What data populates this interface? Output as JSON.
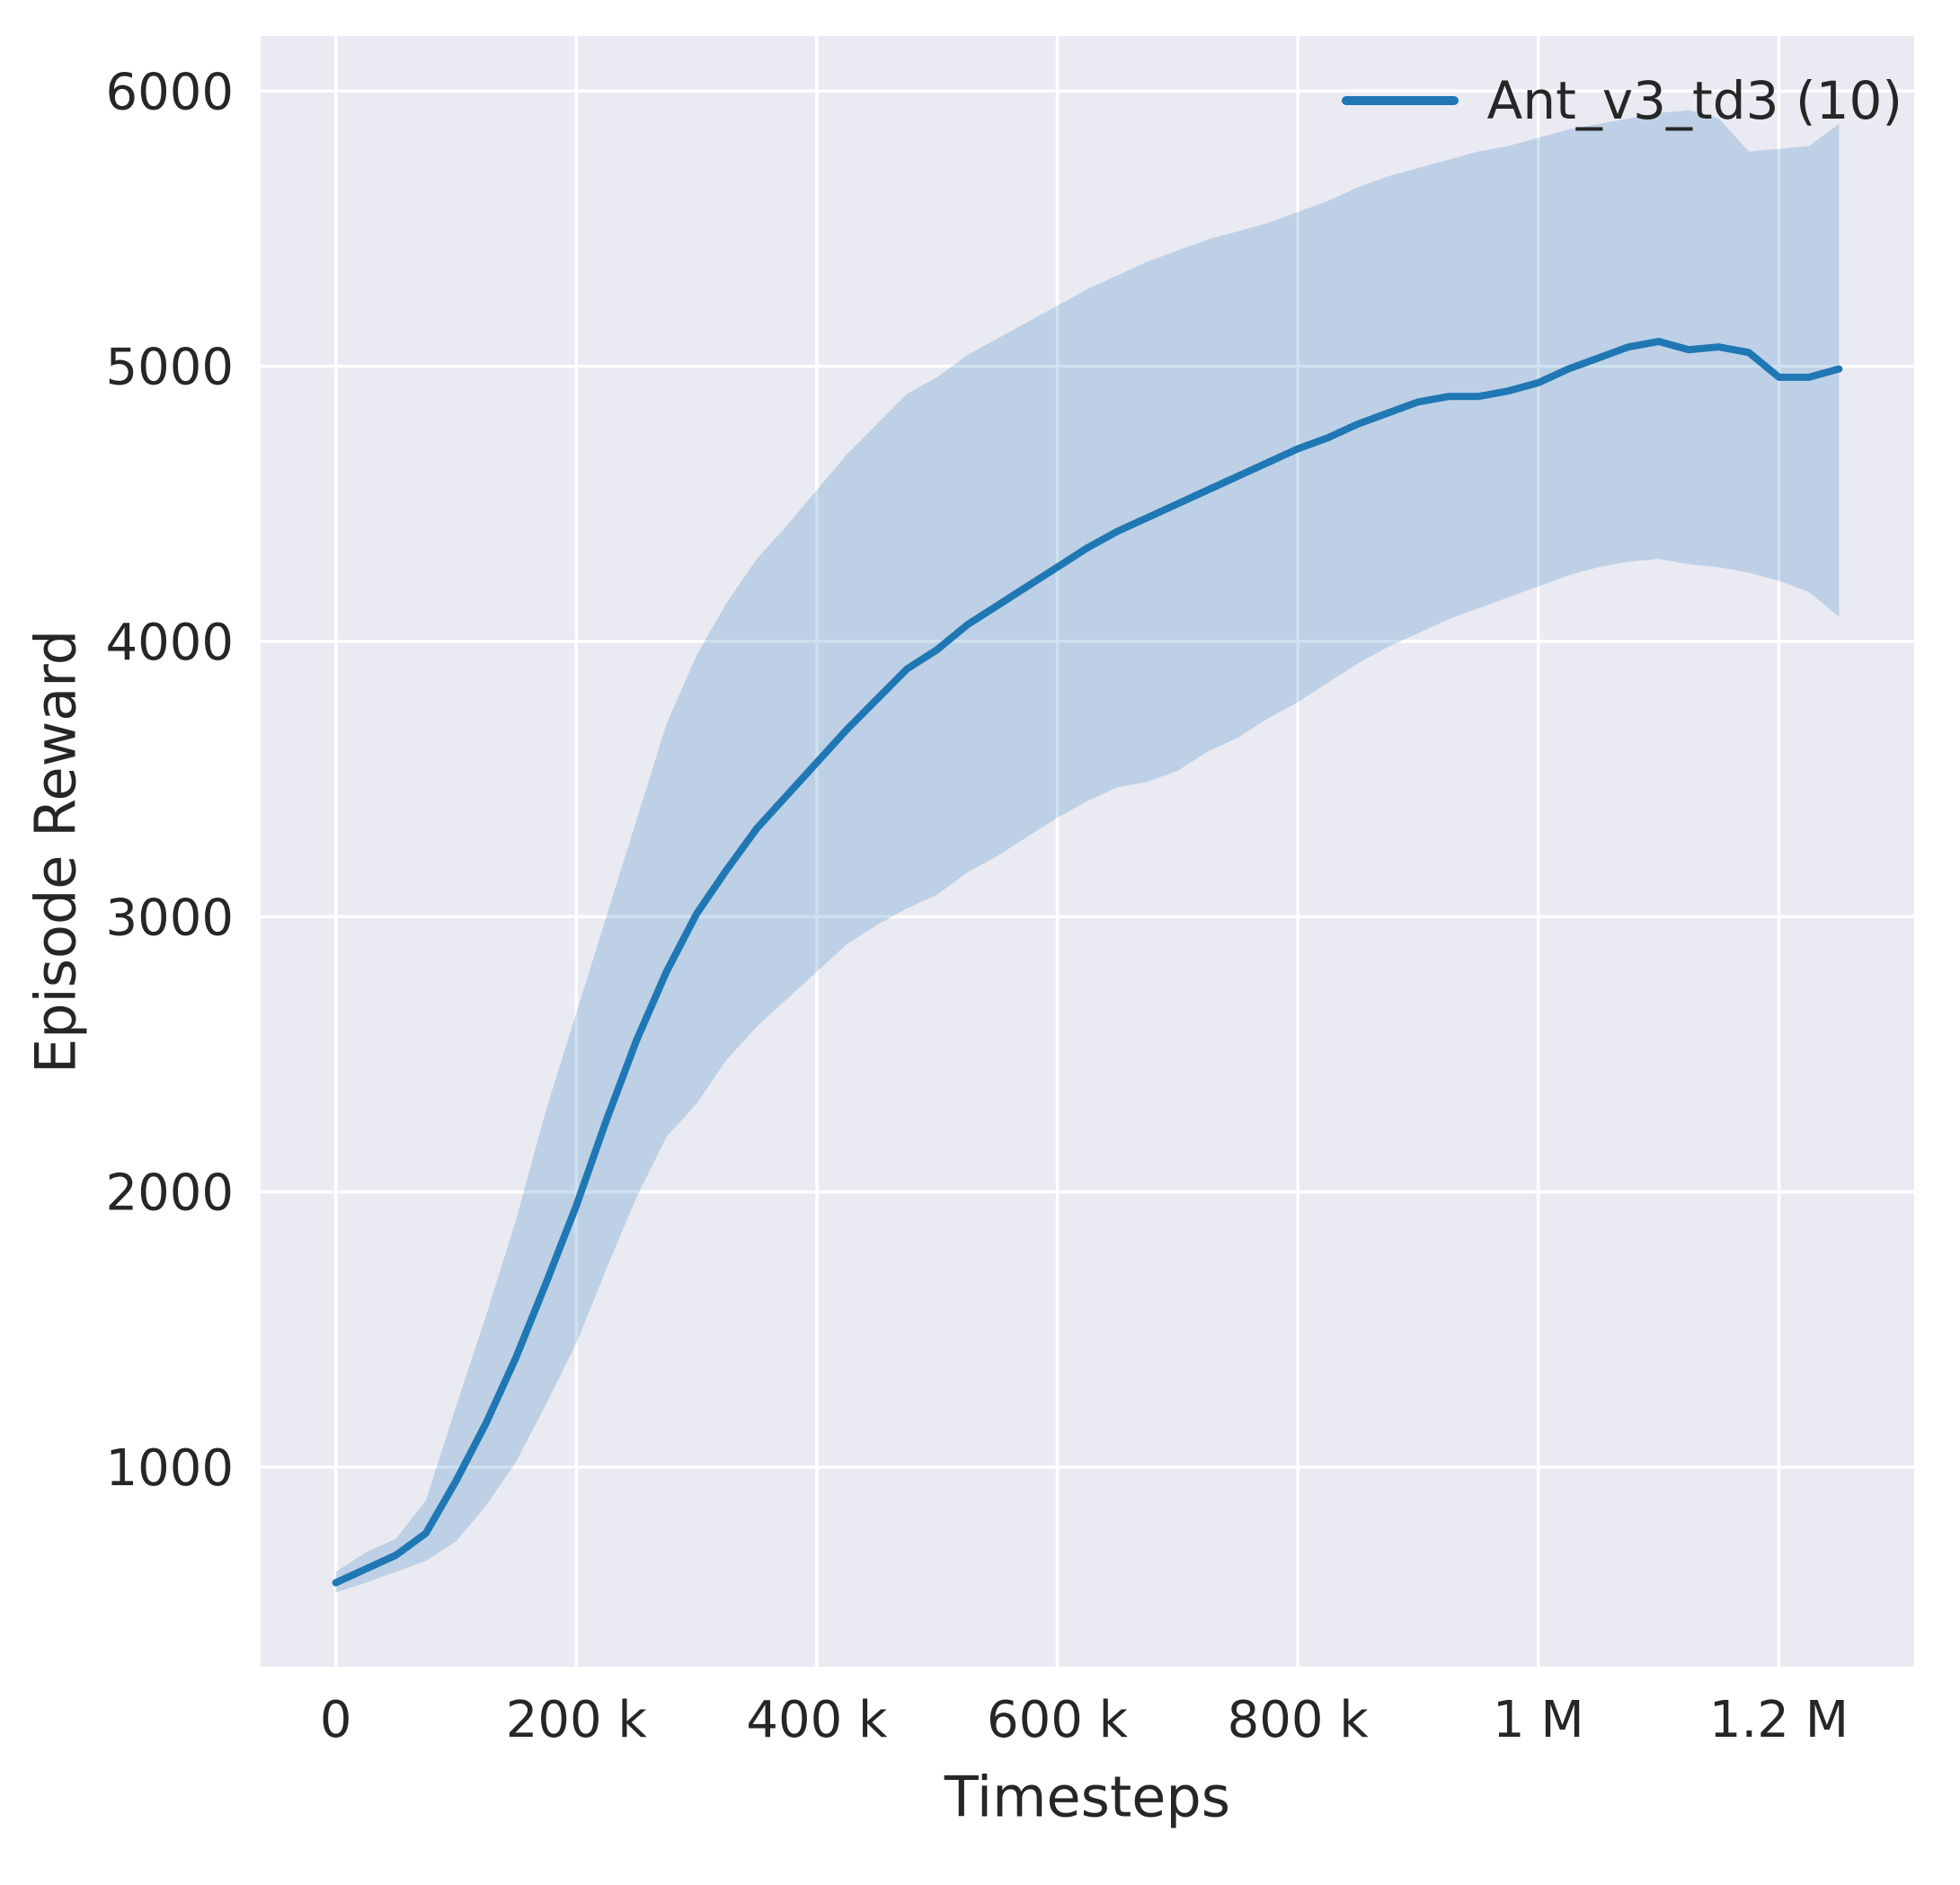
{
  "figure": {
    "background": "#ffffff",
    "axes_background": "#eaeaf2",
    "grid_color": "#ffffff",
    "text_color": "#262626"
  },
  "chart_data": {
    "type": "line",
    "title": "",
    "xlabel": "Timesteps",
    "ylabel": "Episode Reward",
    "grid": true,
    "legend": {
      "position": "upper right",
      "entries": [
        "Ant_v3_td3 (10)"
      ]
    },
    "xlim": [
      -62500,
      1312500
    ],
    "ylim": [
      275,
      6200
    ],
    "xticks": {
      "values": [
        0,
        200000,
        400000,
        600000,
        800000,
        1000000,
        1200000
      ],
      "labels": [
        "0",
        "200 k",
        "400 k",
        "600 k",
        "800 k",
        "1 M",
        "1.2 M"
      ]
    },
    "yticks": {
      "values": [
        1000,
        2000,
        3000,
        4000,
        5000,
        6000
      ],
      "labels": [
        "1000",
        "2000",
        "3000",
        "4000",
        "5000",
        "6000"
      ]
    },
    "x": [
      0,
      25000,
      50000,
      75000,
      100000,
      125000,
      150000,
      175000,
      200000,
      225000,
      250000,
      275000,
      300000,
      325000,
      350000,
      375000,
      400000,
      425000,
      450000,
      475000,
      500000,
      525000,
      550000,
      575000,
      600000,
      625000,
      650000,
      675000,
      700000,
      725000,
      750000,
      775000,
      800000,
      825000,
      850000,
      875000,
      900000,
      925000,
      950000,
      975000,
      1000000,
      1025000,
      1050000,
      1075000,
      1100000,
      1125000,
      1150000,
      1175000,
      1200000,
      1225000,
      1250000
    ],
    "series": [
      {
        "name": "Ant_v3_td3 (10)",
        "color": "#1f77b4",
        "band_color": "#1f77b4",
        "band_opacity": 0.22,
        "values": [
          580,
          630,
          680,
          760,
          950,
          1160,
          1400,
          1670,
          1950,
          2260,
          2550,
          2800,
          3010,
          3170,
          3320,
          3440,
          3560,
          3680,
          3790,
          3900,
          3970,
          4060,
          4130,
          4200,
          4270,
          4340,
          4400,
          4450,
          4500,
          4550,
          4600,
          4650,
          4700,
          4740,
          4790,
          4830,
          4870,
          4890,
          4890,
          4910,
          4940,
          4990,
          5030,
          5070,
          5090,
          5060,
          5070,
          5050,
          4960,
          4960,
          4990
        ],
        "band_lower": [
          545,
          580,
          620,
          660,
          730,
          860,
          1020,
          1230,
          1450,
          1720,
          1980,
          2200,
          2320,
          2480,
          2600,
          2700,
          2800,
          2900,
          2970,
          3030,
          3080,
          3160,
          3220,
          3290,
          3360,
          3420,
          3470,
          3490,
          3530,
          3600,
          3650,
          3720,
          3780,
          3850,
          3920,
          3980,
          4030,
          4080,
          4120,
          4160,
          4200,
          4240,
          4270,
          4290,
          4300,
          4280,
          4270,
          4250,
          4220,
          4180,
          4090
        ],
        "band_upper": [
          620,
          690,
          740,
          880,
          1220,
          1550,
          1900,
          2300,
          2650,
          3000,
          3350,
          3700,
          3950,
          4140,
          4300,
          4420,
          4550,
          4680,
          4790,
          4900,
          4960,
          5040,
          5100,
          5160,
          5220,
          5280,
          5330,
          5380,
          5420,
          5460,
          5490,
          5520,
          5560,
          5600,
          5650,
          5690,
          5720,
          5750,
          5780,
          5800,
          5830,
          5860,
          5880,
          5900,
          5920,
          5930,
          5900,
          5780,
          5790,
          5800,
          5880
        ]
      }
    ]
  }
}
